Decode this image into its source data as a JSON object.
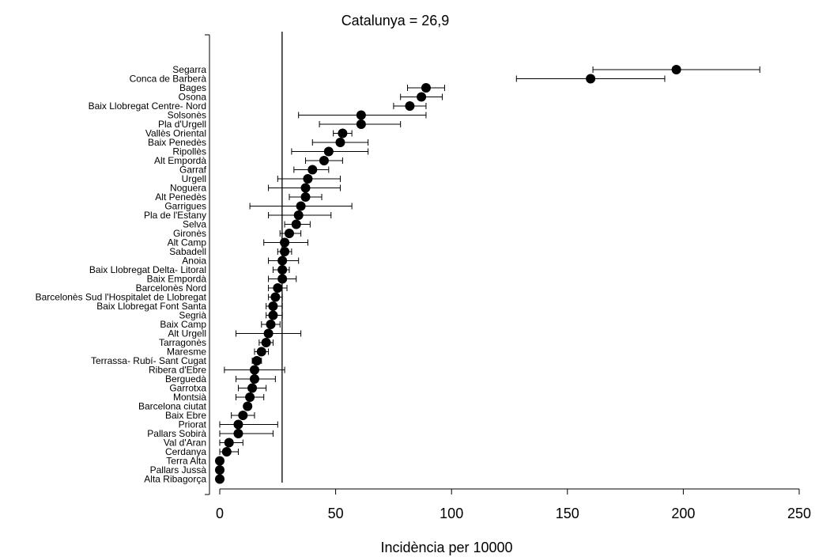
{
  "chart_data": {
    "type": "dot-errorbar",
    "title": "Catalunya = 26,9",
    "xlabel": "Incidència per 10000",
    "ylabel": "",
    "xlim": [
      0,
      250
    ],
    "xticks": [
      0,
      50,
      100,
      150,
      200,
      250
    ],
    "reference_line": 26.9,
    "series": [
      {
        "category": "Segarra",
        "value": 197,
        "lower": 161,
        "upper": 233
      },
      {
        "category": "Conca de Barberà",
        "value": 160,
        "lower": 128,
        "upper": 192
      },
      {
        "category": "Bages",
        "value": 89,
        "lower": 81,
        "upper": 97
      },
      {
        "category": "Osona",
        "value": 87,
        "lower": 78,
        "upper": 96
      },
      {
        "category": "Baix Llobregat Centre- Nord",
        "value": 82,
        "lower": 75,
        "upper": 89
      },
      {
        "category": "Solsonès",
        "value": 61,
        "lower": 34,
        "upper": 89
      },
      {
        "category": "Pla d'Urgell",
        "value": 61,
        "lower": 43,
        "upper": 78
      },
      {
        "category": "Vallès Oriental",
        "value": 53,
        "lower": 49,
        "upper": 57
      },
      {
        "category": "Baix Penedès",
        "value": 52,
        "lower": 40,
        "upper": 64
      },
      {
        "category": "Ripollès",
        "value": 47,
        "lower": 31,
        "upper": 64
      },
      {
        "category": "Alt Empordà",
        "value": 45,
        "lower": 37,
        "upper": 53
      },
      {
        "category": "Garraf",
        "value": 40,
        "lower": 32,
        "upper": 47
      },
      {
        "category": "Urgell",
        "value": 38,
        "lower": 25,
        "upper": 52
      },
      {
        "category": "Noguera",
        "value": 37,
        "lower": 21,
        "upper": 52
      },
      {
        "category": "Alt Penedès",
        "value": 37,
        "lower": 30,
        "upper": 44
      },
      {
        "category": "Garrigues",
        "value": 35,
        "lower": 13,
        "upper": 57
      },
      {
        "category": "Pla de l'Estany",
        "value": 34,
        "lower": 21,
        "upper": 48
      },
      {
        "category": "Selva",
        "value": 33,
        "lower": 28,
        "upper": 39
      },
      {
        "category": "Gironès",
        "value": 30,
        "lower": 26,
        "upper": 35
      },
      {
        "category": "Alt Camp",
        "value": 28,
        "lower": 19,
        "upper": 38
      },
      {
        "category": "Sabadell",
        "value": 28,
        "lower": 25,
        "upper": 31
      },
      {
        "category": "Anoia",
        "value": 27,
        "lower": 21,
        "upper": 34
      },
      {
        "category": "Baix Llobregat Delta- Litoral",
        "value": 27,
        "lower": 23,
        "upper": 30
      },
      {
        "category": "Baix Empordà",
        "value": 27,
        "lower": 21,
        "upper": 33
      },
      {
        "category": "Barcelonès Nord",
        "value": 25,
        "lower": 21,
        "upper": 29
      },
      {
        "category": "Barcelonès Sud l'Hospitalet de Llobregat",
        "value": 24,
        "lower": 21,
        "upper": 27
      },
      {
        "category": "Baix Llobregat Font Santa",
        "value": 23,
        "lower": 20,
        "upper": 27
      },
      {
        "category": "Segrià",
        "value": 23,
        "lower": 20,
        "upper": 27
      },
      {
        "category": "Baix Camp",
        "value": 22,
        "lower": 18,
        "upper": 26
      },
      {
        "category": "Alt Urgell",
        "value": 21,
        "lower": 7,
        "upper": 35
      },
      {
        "category": "Tarragonès",
        "value": 20,
        "lower": 17,
        "upper": 23
      },
      {
        "category": "Maresme",
        "value": 18,
        "lower": 15,
        "upper": 21
      },
      {
        "category": "Terrassa- Rubí- Sant Cugat",
        "value": 16,
        "lower": 14,
        "upper": 18
      },
      {
        "category": "Ribera d'Ebre",
        "value": 15,
        "lower": 2,
        "upper": 28
      },
      {
        "category": "Berguedà",
        "value": 15,
        "lower": 7,
        "upper": 24
      },
      {
        "category": "Garrotxa",
        "value": 14,
        "lower": 8,
        "upper": 20
      },
      {
        "category": "Montsià",
        "value": 13,
        "lower": 7,
        "upper": 19
      },
      {
        "category": "Barcelona ciutat",
        "value": 12,
        "lower": 11,
        "upper": 13
      },
      {
        "category": "Baix Ebre",
        "value": 10,
        "lower": 5,
        "upper": 15
      },
      {
        "category": "Priorat",
        "value": 8,
        "lower": 0,
        "upper": 25
      },
      {
        "category": "Pallars Sobirà",
        "value": 8,
        "lower": 0,
        "upper": 23
      },
      {
        "category": "Val d'Aran",
        "value": 4,
        "lower": 0,
        "upper": 10
      },
      {
        "category": "Cerdanya",
        "value": 3,
        "lower": 0,
        "upper": 8
      },
      {
        "category": "Terra Alta",
        "value": 0,
        "lower": 0,
        "upper": 0
      },
      {
        "category": "Pallars Jussà",
        "value": 0,
        "lower": 0,
        "upper": 0
      },
      {
        "category": "Alta Ribagorça",
        "value": 0,
        "lower": 0,
        "upper": 0
      }
    ]
  }
}
